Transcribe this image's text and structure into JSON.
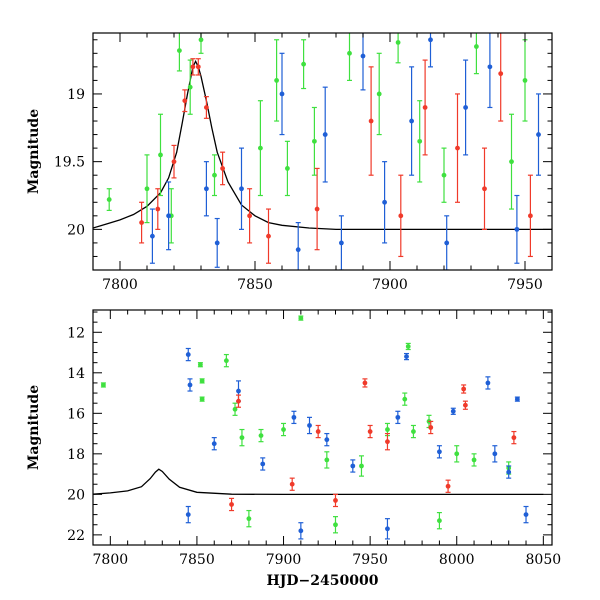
{
  "colors": {
    "blue": "#1f5fd6",
    "green": "#3fe03f",
    "red": "#f03a2a",
    "curve": "#000000"
  },
  "chart_data": [
    {
      "type": "scatter",
      "title": "",
      "xlabel": "",
      "ylabel": "Magnitude",
      "xlim": [
        7790,
        7960
      ],
      "ylim": [
        20.3,
        18.55
      ],
      "y_inverted": true,
      "xticks": [
        7800,
        7850,
        7900,
        7950
      ],
      "xticklabels": [
        "7800",
        "7850",
        "7900",
        "7950"
      ],
      "yticks": [
        19,
        19.5,
        20
      ],
      "yticklabels": [
        "19",
        "19.5",
        "20"
      ],
      "model_curve": {
        "x": [
          7790,
          7795,
          7800,
          7805,
          7810,
          7815,
          7818,
          7821,
          7823,
          7825,
          7826,
          7827,
          7828,
          7829,
          7830,
          7832,
          7834,
          7836,
          7840,
          7845,
          7850,
          7855,
          7860,
          7870,
          7880,
          7900,
          7930,
          7960
        ],
        "y": [
          19.99,
          19.96,
          19.93,
          19.89,
          19.83,
          19.73,
          19.62,
          19.43,
          19.22,
          19.0,
          18.9,
          18.8,
          18.76,
          18.8,
          18.87,
          19.05,
          19.25,
          19.43,
          19.65,
          19.82,
          19.9,
          19.95,
          19.97,
          19.99,
          20.0,
          20.0,
          20.0,
          20.0
        ]
      },
      "series": [
        {
          "color": "green",
          "points": [
            {
              "x": 7796,
              "y": 19.78,
              "err": 0.08
            },
            {
              "x": 7810,
              "y": 19.7,
              "err": 0.25
            },
            {
              "x": 7815,
              "y": 19.45,
              "err": 0.3
            },
            {
              "x": 7819,
              "y": 19.9,
              "err": 0.2
            },
            {
              "x": 7822,
              "y": 18.68,
              "err": 0.15
            },
            {
              "x": 7826,
              "y": 18.95,
              "err": 0.2
            },
            {
              "x": 7830,
              "y": 18.6,
              "err": 0.1
            },
            {
              "x": 7835,
              "y": 19.6,
              "err": 0.15
            },
            {
              "x": 7852,
              "y": 19.4,
              "err": 0.35
            },
            {
              "x": 7858,
              "y": 18.9,
              "err": 0.3
            },
            {
              "x": 7862,
              "y": 19.55,
              "err": 0.2
            },
            {
              "x": 7868,
              "y": 18.78,
              "err": 0.18
            },
            {
              "x": 7872,
              "y": 19.35,
              "err": 0.25
            },
            {
              "x": 7885,
              "y": 18.7,
              "err": 0.2
            },
            {
              "x": 7896,
              "y": 19.0,
              "err": 0.3
            },
            {
              "x": 7903,
              "y": 18.62,
              "err": 0.15
            },
            {
              "x": 7911,
              "y": 19.35,
              "err": 0.3
            },
            {
              "x": 7920,
              "y": 19.6,
              "err": 0.2
            },
            {
              "x": 7932,
              "y": 18.65,
              "err": 0.2
            },
            {
              "x": 7945,
              "y": 19.5,
              "err": 0.35
            },
            {
              "x": 7950,
              "y": 18.9,
              "err": 0.3
            }
          ]
        },
        {
          "color": "blue",
          "points": [
            {
              "x": 7812,
              "y": 20.05,
              "err": 0.2
            },
            {
              "x": 7818,
              "y": 19.9,
              "err": 0.25
            },
            {
              "x": 7832,
              "y": 19.7,
              "err": 0.2
            },
            {
              "x": 7836,
              "y": 20.1,
              "err": 0.18
            },
            {
              "x": 7845,
              "y": 19.7,
              "err": 0.3
            },
            {
              "x": 7860,
              "y": 19.0,
              "err": 0.3
            },
            {
              "x": 7866,
              "y": 20.15,
              "err": 0.2
            },
            {
              "x": 7876,
              "y": 19.3,
              "err": 0.35
            },
            {
              "x": 7882,
              "y": 20.1,
              "err": 0.2
            },
            {
              "x": 7890,
              "y": 18.72,
              "err": 0.25
            },
            {
              "x": 7898,
              "y": 19.8,
              "err": 0.3
            },
            {
              "x": 7908,
              "y": 19.2,
              "err": 0.4
            },
            {
              "x": 7915,
              "y": 18.6,
              "err": 0.2
            },
            {
              "x": 7921,
              "y": 20.1,
              "err": 0.2
            },
            {
              "x": 7928,
              "y": 19.1,
              "err": 0.35
            },
            {
              "x": 7937,
              "y": 18.8,
              "err": 0.3
            },
            {
              "x": 7947,
              "y": 20.0,
              "err": 0.25
            },
            {
              "x": 7955,
              "y": 19.3,
              "err": 0.3
            }
          ]
        },
        {
          "color": "red",
          "points": [
            {
              "x": 7808,
              "y": 19.95,
              "err": 0.15
            },
            {
              "x": 7814,
              "y": 19.85,
              "err": 0.15
            },
            {
              "x": 7820,
              "y": 19.5,
              "err": 0.12
            },
            {
              "x": 7824,
              "y": 19.05,
              "err": 0.08
            },
            {
              "x": 7827,
              "y": 18.8,
              "err": 0.06
            },
            {
              "x": 7829,
              "y": 18.8,
              "err": 0.06
            },
            {
              "x": 7832,
              "y": 19.1,
              "err": 0.08
            },
            {
              "x": 7838,
              "y": 19.55,
              "err": 0.12
            },
            {
              "x": 7848,
              "y": 19.9,
              "err": 0.2
            },
            {
              "x": 7855,
              "y": 20.05,
              "err": 0.2
            },
            {
              "x": 7873,
              "y": 19.85,
              "err": 0.3
            },
            {
              "x": 7893,
              "y": 19.2,
              "err": 0.4
            },
            {
              "x": 7904,
              "y": 19.9,
              "err": 0.3
            },
            {
              "x": 7913,
              "y": 19.1,
              "err": 0.35
            },
            {
              "x": 7925,
              "y": 19.4,
              "err": 0.4
            },
            {
              "x": 7935,
              "y": 19.7,
              "err": 0.3
            },
            {
              "x": 7941,
              "y": 18.85,
              "err": 0.35
            },
            {
              "x": 7952,
              "y": 19.9,
              "err": 0.3
            }
          ]
        }
      ]
    },
    {
      "type": "scatter",
      "title": "",
      "xlabel": "HJD−2450000",
      "ylabel": "Magnitude",
      "xlim": [
        7790,
        8055
      ],
      "ylim": [
        22.5,
        10.9
      ],
      "y_inverted": true,
      "xticks": [
        7800,
        7850,
        7900,
        7950,
        8000,
        8050
      ],
      "xticklabels": [
        "7800",
        "7850",
        "7900",
        "7950",
        "8000",
        "8050"
      ],
      "yticks": [
        12,
        14,
        16,
        18,
        20,
        22
      ],
      "yticklabels": [
        "12",
        "14",
        "16",
        "18",
        "20",
        "22"
      ],
      "model_curve": {
        "x": [
          7790,
          7800,
          7810,
          7818,
          7823,
          7826,
          7828,
          7830,
          7834,
          7840,
          7850,
          7870,
          7900,
          8050
        ],
        "y": [
          19.99,
          19.93,
          19.83,
          19.62,
          19.22,
          18.9,
          18.76,
          18.87,
          19.25,
          19.65,
          19.9,
          19.99,
          20.0,
          20.0
        ]
      },
      "series": [
        {
          "color": "green",
          "points": [
            {
              "x": 7796,
              "y": 14.6,
              "err": 0.1
            },
            {
              "x": 7852,
              "y": 13.6,
              "err": 0.1
            },
            {
              "x": 7853,
              "y": 14.4,
              "err": 0.1
            },
            {
              "x": 7853,
              "y": 15.3,
              "err": 0.1
            },
            {
              "x": 7867,
              "y": 13.4,
              "err": 0.3
            },
            {
              "x": 7872,
              "y": 15.8,
              "err": 0.3
            },
            {
              "x": 7876,
              "y": 17.2,
              "err": 0.4
            },
            {
              "x": 7887,
              "y": 17.1,
              "err": 0.3
            },
            {
              "x": 7900,
              "y": 16.8,
              "err": 0.3
            },
            {
              "x": 7910,
              "y": 11.3,
              "err": 0.1
            },
            {
              "x": 7925,
              "y": 18.3,
              "err": 0.4
            },
            {
              "x": 7945,
              "y": 18.6,
              "err": 0.5
            },
            {
              "x": 7960,
              "y": 16.8,
              "err": 0.3
            },
            {
              "x": 7970,
              "y": 15.3,
              "err": 0.3
            },
            {
              "x": 7972,
              "y": 12.7,
              "err": 0.15
            },
            {
              "x": 7975,
              "y": 16.9,
              "err": 0.3
            },
            {
              "x": 7984,
              "y": 16.4,
              "err": 0.3
            },
            {
              "x": 8000,
              "y": 18.0,
              "err": 0.4
            },
            {
              "x": 8010,
              "y": 18.3,
              "err": 0.3
            },
            {
              "x": 8030,
              "y": 18.7,
              "err": 0.3
            },
            {
              "x": 7880,
              "y": 21.2,
              "err": 0.4
            },
            {
              "x": 7930,
              "y": 21.5,
              "err": 0.4
            },
            {
              "x": 7990,
              "y": 21.3,
              "err": 0.4
            }
          ]
        },
        {
          "color": "blue",
          "points": [
            {
              "x": 7845,
              "y": 13.1,
              "err": 0.3
            },
            {
              "x": 7846,
              "y": 14.6,
              "err": 0.3
            },
            {
              "x": 7860,
              "y": 17.5,
              "err": 0.3
            },
            {
              "x": 7874,
              "y": 14.9,
              "err": 0.5
            },
            {
              "x": 7888,
              "y": 18.5,
              "err": 0.3
            },
            {
              "x": 7906,
              "y": 16.2,
              "err": 0.3
            },
            {
              "x": 7915,
              "y": 16.6,
              "err": 0.4
            },
            {
              "x": 7925,
              "y": 17.3,
              "err": 0.3
            },
            {
              "x": 7940,
              "y": 18.6,
              "err": 0.3
            },
            {
              "x": 7966,
              "y": 16.2,
              "err": 0.3
            },
            {
              "x": 7971,
              "y": 13.2,
              "err": 0.15
            },
            {
              "x": 7990,
              "y": 17.9,
              "err": 0.3
            },
            {
              "x": 7998,
              "y": 15.9,
              "err": 0.15
            },
            {
              "x": 8018,
              "y": 14.5,
              "err": 0.3
            },
            {
              "x": 8022,
              "y": 18.0,
              "err": 0.4
            },
            {
              "x": 8030,
              "y": 18.9,
              "err": 0.3
            },
            {
              "x": 8035,
              "y": 15.3,
              "err": 0.1
            },
            {
              "x": 7845,
              "y": 21.0,
              "err": 0.4
            },
            {
              "x": 7910,
              "y": 21.8,
              "err": 0.4
            },
            {
              "x": 7960,
              "y": 21.7,
              "err": 0.5
            },
            {
              "x": 8040,
              "y": 21.0,
              "err": 0.4
            }
          ]
        },
        {
          "color": "red",
          "points": [
            {
              "x": 7874,
              "y": 15.4,
              "err": 0.3
            },
            {
              "x": 7920,
              "y": 16.9,
              "err": 0.3
            },
            {
              "x": 7947,
              "y": 14.5,
              "err": 0.2
            },
            {
              "x": 7950,
              "y": 16.9,
              "err": 0.3
            },
            {
              "x": 7960,
              "y": 17.4,
              "err": 0.4
            },
            {
              "x": 7985,
              "y": 16.7,
              "err": 0.3
            },
            {
              "x": 8004,
              "y": 14.8,
              "err": 0.2
            },
            {
              "x": 8005,
              "y": 15.6,
              "err": 0.2
            },
            {
              "x": 8033,
              "y": 17.2,
              "err": 0.3
            },
            {
              "x": 7870,
              "y": 20.5,
              "err": 0.3
            },
            {
              "x": 7905,
              "y": 19.5,
              "err": 0.3
            },
            {
              "x": 7930,
              "y": 20.3,
              "err": 0.3
            },
            {
              "x": 7995,
              "y": 19.6,
              "err": 0.3
            }
          ]
        }
      ]
    }
  ]
}
